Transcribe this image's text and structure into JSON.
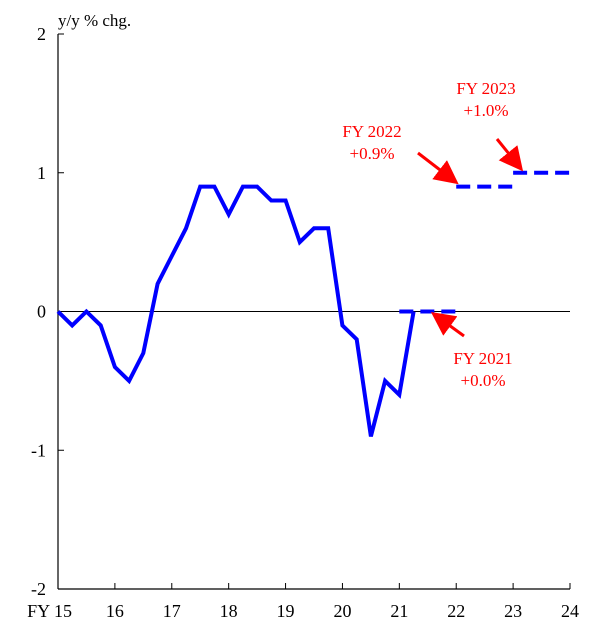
{
  "chart_data": {
    "type": "line",
    "ylabel": "y/y % chg.",
    "ylim": [
      -2,
      2
    ],
    "yticks": [
      2,
      1,
      0,
      -1,
      -2
    ],
    "xlim": [
      15,
      24
    ],
    "xticks": [
      {
        "value": 15,
        "label": "FY 15"
      },
      {
        "value": 16,
        "label": "16"
      },
      {
        "value": 17,
        "label": "17"
      },
      {
        "value": 18,
        "label": "18"
      },
      {
        "value": 19,
        "label": "19"
      },
      {
        "value": 20,
        "label": "20"
      },
      {
        "value": 21,
        "label": "21"
      },
      {
        "value": 22,
        "label": "22"
      },
      {
        "value": 23,
        "label": "23"
      },
      {
        "value": 24,
        "label": "24"
      }
    ],
    "grid": false,
    "zero_line": true,
    "series": [
      {
        "style": "solid",
        "color": "#0000ff",
        "points": [
          [
            15.0,
            0.0
          ],
          [
            15.25,
            -0.1
          ],
          [
            15.5,
            0.0
          ],
          [
            15.75,
            -0.1
          ],
          [
            16.0,
            -0.4
          ],
          [
            16.25,
            -0.5
          ],
          [
            16.5,
            -0.3
          ],
          [
            16.75,
            0.2
          ],
          [
            17.0,
            0.4
          ],
          [
            17.25,
            0.6
          ],
          [
            17.5,
            0.9
          ],
          [
            17.75,
            0.9
          ],
          [
            18.0,
            0.7
          ],
          [
            18.25,
            0.9
          ],
          [
            18.5,
            0.9
          ],
          [
            18.75,
            0.8
          ],
          [
            19.0,
            0.8
          ],
          [
            19.25,
            0.5
          ],
          [
            19.5,
            0.6
          ],
          [
            19.75,
            0.6
          ],
          [
            20.0,
            -0.1
          ],
          [
            20.25,
            -0.2
          ],
          [
            20.5,
            -0.9
          ],
          [
            20.75,
            -0.5
          ],
          [
            21.0,
            -0.6
          ],
          [
            21.25,
            0.0
          ]
        ]
      },
      {
        "style": "dashed",
        "color": "#0000ff",
        "segments": [
          {
            "x": [
              21.0,
              22.0
            ],
            "y": 0.0
          },
          {
            "x": [
              22.0,
              23.0
            ],
            "y": 0.9
          },
          {
            "x": [
              23.0,
              24.0
            ],
            "y": 1.0
          }
        ]
      }
    ],
    "annotations": [
      {
        "lines": [
          "FY 2021",
          "+0.0%"
        ],
        "arrow_to": [
          21.5,
          0.0
        ],
        "color": "#ff0000"
      },
      {
        "lines": [
          "FY 2022",
          "+0.9%"
        ],
        "arrow_to": [
          22.1,
          0.9
        ],
        "color": "#ff0000"
      },
      {
        "lines": [
          "FY 2023",
          "+1.0%"
        ],
        "arrow_to": [
          23.25,
          1.0
        ],
        "color": "#ff0000"
      }
    ]
  }
}
